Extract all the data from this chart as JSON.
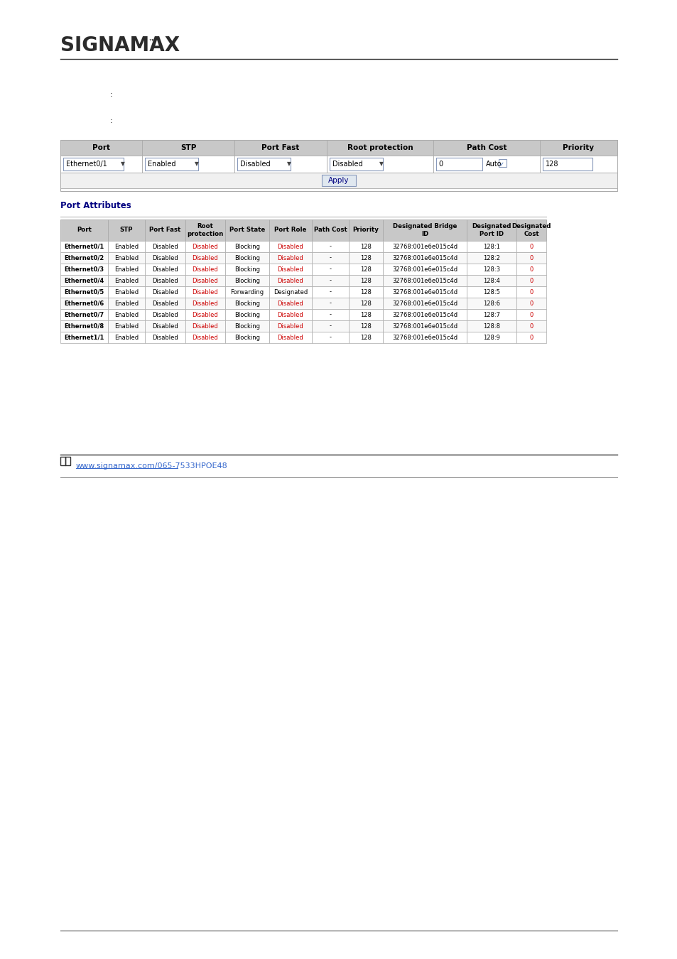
{
  "bg_color": "#ffffff",
  "logo_text": "SIGNAMAX",
  "logo_tm": "™",
  "label1_text": ":",
  "label2_text": ":",
  "form_header": [
    "Port",
    "STP",
    "Port Fast",
    "Root protection",
    "Path Cost",
    "Priority"
  ],
  "form_values": [
    "Ethernet0/1",
    "Enabled",
    "Disabled",
    "Disabled",
    "0",
    "128"
  ],
  "apply_btn": "Apply",
  "port_attr_title": "Port Attributes",
  "table_headers": [
    "Port",
    "STP",
    "Port Fast",
    "Root\nprotection",
    "Port State",
    "Port Role",
    "Path Cost",
    "Priority",
    "Designated Bridge\nID",
    "Designated\nPort ID",
    "Designated\nCost"
  ],
  "table_data": [
    [
      "Ethernet0/1",
      "Enabled",
      "Disabled",
      "Disabled",
      "Blocking",
      "Disabled",
      "-",
      "128",
      "32768:001e6e015c4d",
      "128:1",
      "0"
    ],
    [
      "Ethernet0/2",
      "Enabled",
      "Disabled",
      "Disabled",
      "Blocking",
      "Disabled",
      "-",
      "128",
      "32768:001e6e015c4d",
      "128:2",
      "0"
    ],
    [
      "Ethernet0/3",
      "Enabled",
      "Disabled",
      "Disabled",
      "Blocking",
      "Disabled",
      "-",
      "128",
      "32768:001e6e015c4d",
      "128:3",
      "0"
    ],
    [
      "Ethernet0/4",
      "Enabled",
      "Disabled",
      "Disabled",
      "Blocking",
      "Disabled",
      "-",
      "128",
      "32768:001e6e015c4d",
      "128:4",
      "0"
    ],
    [
      "Ethernet0/5",
      "Enabled",
      "Disabled",
      "Disabled",
      "Forwarding",
      "Designated",
      "-",
      "128",
      "32768:001e6e015c4d",
      "128:5",
      "0"
    ],
    [
      "Ethernet0/6",
      "Enabled",
      "Disabled",
      "Disabled",
      "Blocking",
      "Disabled",
      "-",
      "128",
      "32768:001e6e015c4d",
      "128:6",
      "0"
    ],
    [
      "Ethernet0/7",
      "Enabled",
      "Disabled",
      "Disabled",
      "Blocking",
      "Disabled",
      "-",
      "128",
      "32768:001e6e015c4d",
      "128:7",
      "0"
    ],
    [
      "Ethernet0/8",
      "Enabled",
      "Disabled",
      "Disabled",
      "Blocking",
      "Disabled",
      "-",
      "128",
      "32768:001e6e015c4d",
      "128:8",
      "0"
    ],
    [
      "Ethernet1/1",
      "Enabled",
      "Disabled",
      "Disabled",
      "Blocking",
      "Disabled",
      "-",
      "128",
      "32768:001e6e015c4d",
      "128:9",
      "0"
    ]
  ],
  "note_link_text": "www.signamax.com/065-7533HPOE48",
  "disabled_color": "#cc0000",
  "header_bg": "#c8c8c8",
  "row_bg_even": "#ffffff",
  "row_bg_odd": "#f8f8f8",
  "border_color": "#aaaaaa",
  "form_border": "#8899bb",
  "link_color": "#3366cc",
  "dark_line": "#333333",
  "form_col_widths": [
    115,
    130,
    130,
    150,
    150,
    109
  ],
  "tbl_col_widths": [
    67,
    52,
    57,
    56,
    62,
    60,
    52,
    48,
    118,
    70,
    42
  ]
}
